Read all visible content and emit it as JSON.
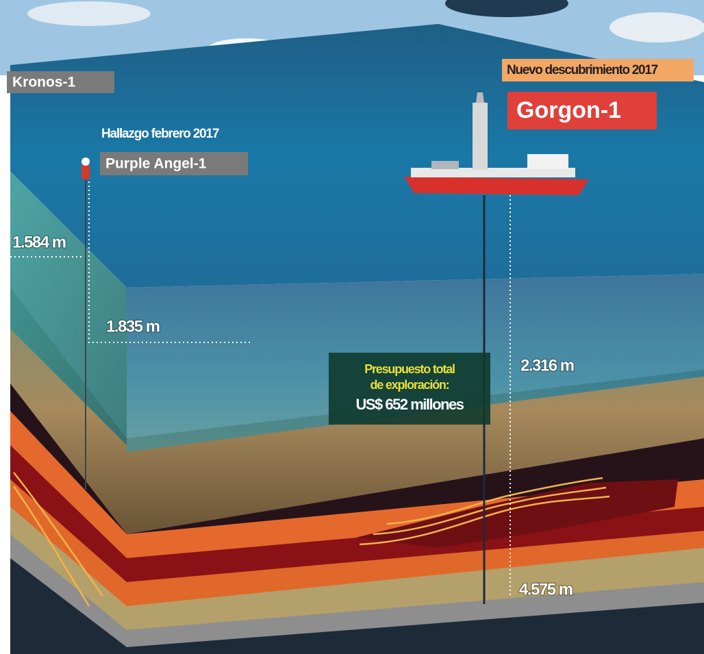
{
  "kronos": {
    "name": "Kronos-1"
  },
  "purple_angel": {
    "note": "Hallazgo febrero 2017",
    "name": "Purple Angel-1"
  },
  "gorgon": {
    "note": "Nuevo descubrimiento 2017",
    "name": "Gorgon-1"
  },
  "depths": [
    "1.584 m",
    "1.835 m",
    "2.316 m",
    "4.575 m"
  ],
  "budget": {
    "lines": [
      "Presupuesto total",
      "de exploración:"
    ],
    "amount": "US$ 652 millones"
  }
}
